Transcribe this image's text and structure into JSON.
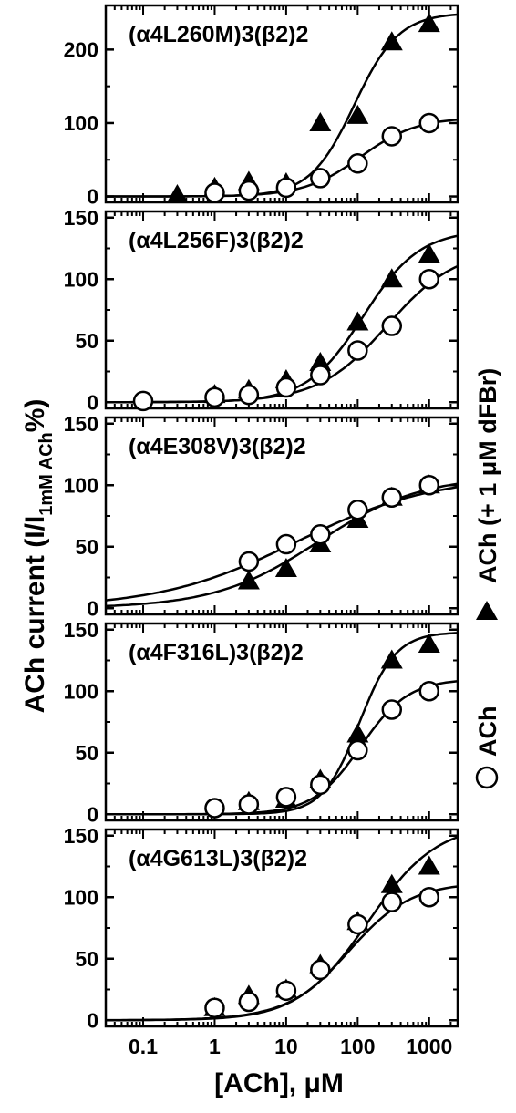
{
  "figure": {
    "ylabel_main": "ACh current (I/I",
    "ylabel_sub": "1mM ACh",
    "ylabel_end": "%)",
    "xlabel": "[ACh], μM",
    "legend": {
      "triangle_label": "ACh (+ 1 μM dFBr)",
      "circle_label": "ACh"
    }
  },
  "chart_data": [
    {
      "type": "scatter",
      "title": "(α4L260M)3(β2)2",
      "xscale": "log",
      "xlim": [
        0.03,
        2500
      ],
      "ylim": [
        -8,
        260
      ],
      "yticks": [
        0,
        100,
        200
      ],
      "xticks": [
        0.1,
        1,
        10,
        100,
        1000
      ],
      "xtick_labels": [
        "0.1",
        "1",
        "10",
        "100",
        "1000"
      ],
      "series": [
        {
          "name": "ACh (+ 1 μM dFBr)",
          "marker": "filled-triangle",
          "x": [
            0.3,
            1,
            3,
            10,
            30,
            100,
            300,
            1000
          ],
          "y": [
            2,
            12,
            20,
            18,
            100,
            110,
            210,
            235
          ],
          "fit": {
            "bottom": 0,
            "top": 250,
            "ec50": 90,
            "hill": 1.4
          }
        },
        {
          "name": "ACh",
          "marker": "open-circle",
          "x": [
            1,
            3,
            10,
            30,
            100,
            300,
            1000
          ],
          "y": [
            5,
            8,
            12,
            25,
            45,
            82,
            100
          ],
          "fit": {
            "bottom": 0,
            "top": 108,
            "ec50": 110,
            "hill": 1.1
          }
        }
      ]
    },
    {
      "type": "scatter",
      "title": "(α4L256F)3(β2)2",
      "xscale": "log",
      "xlim": [
        0.03,
        2500
      ],
      "ylim": [
        -5,
        155
      ],
      "yticks": [
        0,
        50,
        100,
        150
      ],
      "xticks": [
        0.1,
        1,
        10,
        100,
        1000
      ],
      "xtick_labels": [
        "0.1",
        "1",
        "10",
        "100",
        "1000"
      ],
      "series": [
        {
          "name": "ACh (+ 1 μM dFBr)",
          "marker": "filled-triangle",
          "x": [
            1,
            3,
            10,
            30,
            100,
            300,
            1000
          ],
          "y": [
            6,
            10,
            18,
            32,
            65,
            100,
            120
          ],
          "fit": {
            "bottom": 0,
            "top": 140,
            "ec50": 120,
            "hill": 1.1
          }
        },
        {
          "name": "ACh",
          "marker": "open-circle",
          "x": [
            0.1,
            1,
            3,
            10,
            30,
            100,
            300,
            1000
          ],
          "y": [
            1,
            4,
            6,
            12,
            22,
            42,
            62,
            100
          ],
          "fit": {
            "bottom": 0,
            "top": 125,
            "ec50": 260,
            "hill": 0.9
          }
        }
      ]
    },
    {
      "type": "scatter",
      "title": "(α4E308V)3(β2)2",
      "xscale": "log",
      "xlim": [
        0.03,
        2500
      ],
      "ylim": [
        -5,
        155
      ],
      "yticks": [
        0,
        50,
        100,
        150
      ],
      "xticks": [
        0.1,
        1,
        10,
        100,
        1000
      ],
      "xtick_labels": [
        "0.1",
        "1",
        "10",
        "100",
        "1000"
      ],
      "series": [
        {
          "name": "ACh (+ 1 μM dFBr)",
          "marker": "filled-triangle",
          "x": [
            3,
            10,
            30,
            100,
            300,
            1000
          ],
          "y": [
            22,
            32,
            52,
            72,
            90,
            100
          ],
          "fit": {
            "bottom": 0,
            "top": 108,
            "ec50": 28,
            "hill": 0.6
          }
        },
        {
          "name": "ACh",
          "marker": "open-circle",
          "x": [
            3,
            10,
            30,
            100,
            300,
            1000
          ],
          "y": [
            38,
            52,
            60,
            80,
            90,
            100
          ],
          "fit": {
            "bottom": 0,
            "top": 108,
            "ec50": 14,
            "hill": 0.45
          }
        }
      ]
    },
    {
      "type": "scatter",
      "title": "(α4F316L)3(β2)2",
      "xscale": "log",
      "xlim": [
        0.03,
        2500
      ],
      "ylim": [
        -5,
        155
      ],
      "yticks": [
        0,
        50,
        100,
        150
      ],
      "xticks": [
        0.1,
        1,
        10,
        100,
        1000
      ],
      "xtick_labels": [
        "0.1",
        "1",
        "10",
        "100",
        "1000"
      ],
      "series": [
        {
          "name": "ACh (+ 1 μM dFBr)",
          "marker": "filled-triangle",
          "x": [
            3,
            10,
            30,
            100,
            300,
            1000
          ],
          "y": [
            10,
            12,
            28,
            65,
            125,
            138
          ],
          "fit": {
            "bottom": 0,
            "top": 148,
            "ec50": 105,
            "hill": 1.7
          }
        },
        {
          "name": "ACh",
          "marker": "open-circle",
          "x": [
            1,
            3,
            10,
            30,
            100,
            300,
            1000
          ],
          "y": [
            5,
            8,
            14,
            24,
            52,
            85,
            100
          ],
          "fit": {
            "bottom": 0,
            "top": 110,
            "ec50": 110,
            "hill": 1.3
          }
        }
      ]
    },
    {
      "type": "scatter",
      "title": "(α4G613L)3(β2)2",
      "xscale": "log",
      "xlim": [
        0.03,
        2500
      ],
      "ylim": [
        -5,
        155
      ],
      "yticks": [
        0,
        50,
        100,
        150
      ],
      "xticks": [
        0.1,
        1,
        10,
        100,
        1000
      ],
      "xtick_labels": [
        "0.1",
        "1",
        "10",
        "100",
        "1000"
      ],
      "series": [
        {
          "name": "ACh (+ 1 μM dFBr)",
          "marker": "filled-triangle",
          "x": [
            1,
            3,
            10,
            30,
            100,
            300,
            1000
          ],
          "y": [
            10,
            20,
            25,
            45,
            80,
            110,
            125
          ],
          "fit": {
            "bottom": 0,
            "top": 160,
            "ec50": 140,
            "hill": 0.9
          }
        },
        {
          "name": "ACh",
          "marker": "open-circle",
          "x": [
            1,
            3,
            10,
            30,
            100,
            300,
            1000
          ],
          "y": [
            10,
            15,
            24,
            41,
            78,
            96,
            100
          ],
          "fit": {
            "bottom": 0,
            "top": 112,
            "ec50": 75,
            "hill": 1.0
          }
        }
      ]
    }
  ]
}
